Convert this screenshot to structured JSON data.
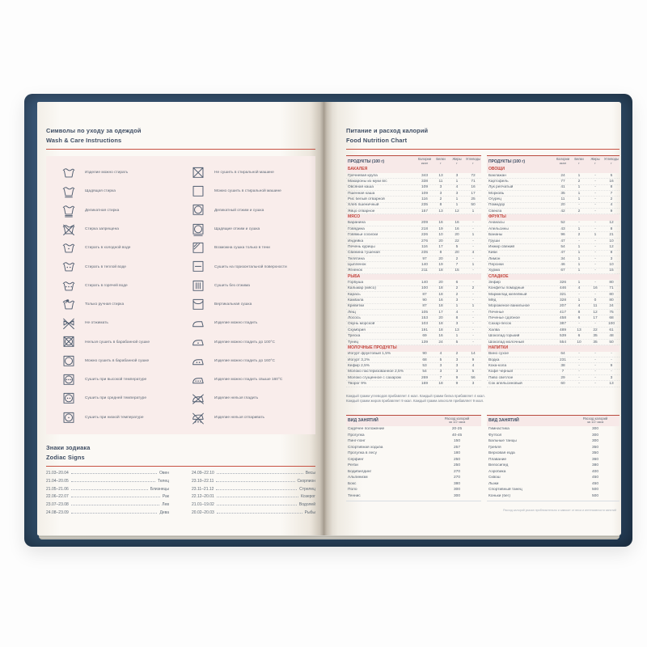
{
  "colors": {
    "cover": "#2d4963",
    "accent_rule": "#c75243",
    "panel_pink": "#f9edeb",
    "section_red": "#c2453c",
    "page": "#fbf9f5",
    "title_navy": "#3e4d63"
  },
  "left_page": {
    "care": {
      "title_ru": "Символы по уходу за одеждой",
      "title_en": "Wash & Care Instructions",
      "items_left": [
        {
          "icon": "washtub",
          "label": "Изделие можно стирать"
        },
        {
          "icon": "washtub-gentle",
          "label": "Щадящая стирка"
        },
        {
          "icon": "washtub-delicate",
          "label": "Деликатная стирка"
        },
        {
          "icon": "washtub-no",
          "label": "Стирка запрещена"
        },
        {
          "icon": "washtub-cold",
          "label": "Стирать в холодной воде"
        },
        {
          "icon": "washtub-warm",
          "label": "Стирать в теплой воде"
        },
        {
          "icon": "washtub-hot",
          "label": "Стирать в горячей воде"
        },
        {
          "icon": "handwash",
          "label": "Только ручная стирка"
        },
        {
          "icon": "no-wring",
          "label": "Не отжимать"
        },
        {
          "icon": "no-tumble-dry",
          "label": "Нельзя сушить в барабанной сушке"
        },
        {
          "icon": "tumble-dry",
          "label": "Можно сушить в барабанной сушке"
        },
        {
          "icon": "tumble-dry-high",
          "label": "Сушить при высокой температуре"
        },
        {
          "icon": "tumble-dry-medium",
          "label": "Сушить при средней температуре"
        },
        {
          "icon": "tumble-dry-low",
          "label": "Сушить при низкой температуре"
        }
      ],
      "items_right": [
        {
          "icon": "no-machine-dry",
          "label": "Не сушить в стиральной машине"
        },
        {
          "icon": "machine-dry",
          "label": "Можно сушить в стиральной машине"
        },
        {
          "icon": "delicate-spin-dry",
          "label": "Деликатный отжим и сушка"
        },
        {
          "icon": "gentle-spin-dry",
          "label": "Щадящие отжим и сушка"
        },
        {
          "icon": "shade-dry",
          "label": "Возможна сушка только в тени"
        },
        {
          "icon": "flat-dry",
          "label": "Сушить на горизонтальной поверхности"
        },
        {
          "icon": "drip-dry",
          "label": "Сушить без отжима"
        },
        {
          "icon": "line-dry",
          "label": "Вертикальная сушка"
        },
        {
          "icon": "iron",
          "label": "Изделие можно гладить"
        },
        {
          "icon": "iron-low",
          "label": "Изделие можно гладить до 100°С"
        },
        {
          "icon": "iron-medium",
          "label": "Изделие можно гладить до 160°С"
        },
        {
          "icon": "iron-high",
          "label": "Изделие можно гладить свыше 160°С"
        },
        {
          "icon": "no-iron",
          "label": "Изделие нельзя гладить"
        },
        {
          "icon": "no-steam",
          "label": "Изделие нельзя отпаривать"
        }
      ]
    },
    "zodiac": {
      "title_ru": "Знаки зодиака",
      "title_en": "Zodiac Signs",
      "col1": [
        {
          "dates": "21.03–20.04",
          "sign": "Овен"
        },
        {
          "dates": "21.04–20.05",
          "sign": "Телец"
        },
        {
          "dates": "21.05–21.06",
          "sign": "Близнецы"
        },
        {
          "dates": "22.06–22.07",
          "sign": "Рак"
        },
        {
          "dates": "23.07–23.08",
          "sign": "Лев"
        },
        {
          "dates": "24.08–23.09",
          "sign": "Дева"
        }
      ],
      "col2": [
        {
          "dates": "24.09–22.10",
          "sign": "Весы"
        },
        {
          "dates": "23.10–22.11",
          "sign": "Скорпион"
        },
        {
          "dates": "23.11–21.12",
          "sign": "Стрелец"
        },
        {
          "dates": "22.12–20.01",
          "sign": "Козерог"
        },
        {
          "dates": "21.01–19.02",
          "sign": "Водолей"
        },
        {
          "dates": "20.02–20.03",
          "sign": "Рыбы"
        }
      ]
    }
  },
  "right_page": {
    "nutrition": {
      "title_ru": "Питание и расход калорий",
      "title_en": "Food Nutrition Chart",
      "products_header": "ПРОДУКТЫ (100 г)",
      "columns": [
        {
          "name": "Калории",
          "unit": "ккал"
        },
        {
          "name": "Белки",
          "unit": "г"
        },
        {
          "name": "Жиры",
          "unit": "г"
        },
        {
          "name": "Углеводы",
          "unit": "г"
        }
      ],
      "left_sections": [
        {
          "name": "БАКАЛЕЯ",
          "rows": [
            [
              "Гречневая крупа",
              "343",
              "13",
              "3",
              "72"
            ],
            [
              "Макароны из муки в/с",
              "338",
              "11",
              "1",
              "71"
            ],
            [
              "Овсяная каша",
              "109",
              "3",
              "4",
              "16"
            ],
            [
              "Пшенная каша",
              "109",
              "3",
              "3",
              "17"
            ],
            [
              "Рис белый отварной",
              "116",
              "2",
              "1",
              "25"
            ],
            [
              "Хлеб пшеничный",
              "235",
              "8",
              "1",
              "50"
            ],
            [
              "Яйцо отварное",
              "157",
              "13",
              "12",
              "1"
            ]
          ]
        },
        {
          "name": "МЯСО",
          "rows": [
            [
              "Баранина",
              "209",
              "16",
              "16",
              "-"
            ],
            [
              "Говядина",
              "218",
              "19",
              "16",
              "-"
            ],
            [
              "Говяжьи сосиски",
              "226",
              "10",
              "20",
              "1"
            ],
            [
              "Индейка",
              "276",
              "20",
              "22",
              "-"
            ],
            [
              "Печень курицы",
              "116",
              "17",
              "5",
              "-"
            ],
            [
              "Свинина тушеная",
              "235",
              "8",
              "20",
              "4"
            ],
            [
              "Телятина",
              "97",
              "20",
              "2",
              "-"
            ],
            [
              "Цыпленок",
              "140",
              "19",
              "7",
              "1"
            ],
            [
              "Ягненок",
              "211",
              "18",
              "15",
              "-"
            ]
          ]
        },
        {
          "name": "РЫБА",
          "rows": [
            [
              "Горбуша",
              "140",
              "20",
              "6",
              "-"
            ],
            [
              "Кальмар (мясо)",
              "100",
              "18",
              "2",
              "2"
            ],
            [
              "Карась",
              "87",
              "18",
              "2",
              "-"
            ],
            [
              "Камбала",
              "90",
              "16",
              "3",
              "-"
            ],
            [
              "Креветки",
              "87",
              "18",
              "1",
              "1"
            ],
            [
              "Лещ",
              "105",
              "17",
              "4",
              "-"
            ],
            [
              "Лосось",
              "153",
              "20",
              "8",
              "-"
            ],
            [
              "Окунь морской",
              "103",
              "18",
              "3",
              "-"
            ],
            [
              "Скумбрия",
              "191",
              "18",
              "13",
              "-"
            ],
            [
              "Треска",
              "69",
              "16",
              "1",
              "-"
            ],
            [
              "Тунец",
              "139",
              "24",
              "5",
              "-"
            ]
          ]
        },
        {
          "name": "МОЛОЧНЫЕ ПРОДУКТЫ",
          "rows": [
            [
              "Йогурт фруктовый 1,5%",
              "90",
              "4",
              "2",
              "14"
            ],
            [
              "Йогурт 3,2%",
              "68",
              "5",
              "3",
              "9"
            ],
            [
              "Кефир 2,5%",
              "53",
              "3",
              "3",
              "4"
            ],
            [
              "Молоко пастеризованное 2,5%",
              "54",
              "3",
              "3",
              "5"
            ],
            [
              "Молоко сгущенное с сахаром",
              "269",
              "7",
              "9",
              "56"
            ],
            [
              "Творог 9%",
              "169",
              "18",
              "9",
              "3"
            ]
          ]
        }
      ],
      "right_sections": [
        {
          "name": "ОВОЩИ",
          "rows": [
            [
              "Баклажан",
              "24",
              "1",
              "-",
              "5"
            ],
            [
              "Картофель",
              "77",
              "2",
              "-",
              "16"
            ],
            [
              "Лук репчатый",
              "41",
              "1",
              "-",
              "8"
            ],
            [
              "Морковь",
              "35",
              "1",
              "-",
              "7"
            ],
            [
              "Огурец",
              "11",
              "1",
              "-",
              "2"
            ],
            [
              "Помидор",
              "20",
              "-",
              "-",
              "4"
            ],
            [
              "Свекла",
              "42",
              "2",
              "-",
              "9"
            ]
          ]
        },
        {
          "name": "ФРУКТЫ",
          "rows": [
            [
              "Ананасы",
              "52",
              "-",
              "-",
              "12"
            ],
            [
              "Апельсины",
              "43",
              "1",
              "-",
              "8"
            ],
            [
              "Бананы",
              "96",
              "2",
              "1",
              "21"
            ],
            [
              "Груши",
              "47",
              "-",
              "-",
              "10"
            ],
            [
              "Инжир свежий",
              "54",
              "1",
              "-",
              "12"
            ],
            [
              "Киви",
              "47",
              "1",
              "-",
              "8"
            ],
            [
              "Лимон",
              "34",
              "1",
              "-",
              "3"
            ],
            [
              "Персики",
              "46",
              "1",
              "-",
              "10"
            ],
            [
              "Хурма",
              "67",
              "1",
              "-",
              "15"
            ]
          ]
        },
        {
          "name": "СЛАДКОЕ",
          "rows": [
            [
              "Зефир",
              "326",
              "1",
              "-",
              "80"
            ],
            [
              "Конфеты помадные",
              "446",
              "4",
              "16",
              "71"
            ],
            [
              "Мармелад желейный",
              "321",
              "-",
              "-",
              "80"
            ],
            [
              "Мёд",
              "328",
              "1",
              "0",
              "80"
            ],
            [
              "Мороженое ванильное",
              "207",
              "4",
              "11",
              "24"
            ],
            [
              "Печенье",
              "417",
              "8",
              "12",
              "75"
            ],
            [
              "Печенье сдобное",
              "458",
              "6",
              "17",
              "68"
            ],
            [
              "Сахар-песок",
              "387",
              "-",
              "-",
              "100"
            ],
            [
              "Халва",
              "489",
              "13",
              "22",
              "61"
            ],
            [
              "Шоколад горький",
              "539",
              "6",
              "35",
              "48"
            ],
            [
              "Шоколад молочный",
              "554",
              "10",
              "35",
              "50"
            ]
          ]
        },
        {
          "name": "НАПИТКИ",
          "rows": [
            [
              "Вино сухое",
              "64",
              "-",
              "-",
              "-"
            ],
            [
              "Водка",
              "231",
              "-",
              "-",
              "-"
            ],
            [
              "Кока-кола",
              "38",
              "-",
              "-",
              "9"
            ],
            [
              "Кофе черный",
              "7",
              "-",
              "-",
              "-"
            ],
            [
              "Пиво светлое",
              "29",
              "-",
              "-",
              "3"
            ],
            [
              "Сок апельсиновый",
              "60",
              "-",
              "-",
              "13"
            ]
          ]
        }
      ],
      "notes": [
        "Каждый грамм углеводов прибавляет 4 ккал. Каждый грамм белка прибавляет 4 ккал.",
        "Каждый грамм жиров прибавляет 9 ккал. Каждый грамм алкоголя прибавляет 9 ккал."
      ]
    },
    "activities": {
      "header": "ВИД ЗАНЯТИЙ",
      "kcal_header_line1": "Расход калорий",
      "kcal_header_line2": "за 1/2 часа",
      "left": [
        {
          "name": "Сидячее положение",
          "kcal": "20-25"
        },
        {
          "name": "Прогулка",
          "kcal": "40-45"
        },
        {
          "name": "Пинг-понг",
          "kcal": "150"
        },
        {
          "name": "Спортивная ходьба",
          "kcal": "257"
        },
        {
          "name": "Прогулка в лесу",
          "kcal": "180"
        },
        {
          "name": "Серфинг",
          "kcal": "250"
        },
        {
          "name": "Регби",
          "kcal": "250"
        },
        {
          "name": "Бодибилдинг",
          "kcal": "270"
        },
        {
          "name": "Альпинизм",
          "kcal": "270"
        },
        {
          "name": "Бокс",
          "kcal": "380"
        },
        {
          "name": "Поло",
          "kcal": "300"
        },
        {
          "name": "Теннис",
          "kcal": "300"
        }
      ],
      "right": [
        {
          "name": "Гимнастика",
          "kcal": "300"
        },
        {
          "name": "Футбол",
          "kcal": "300"
        },
        {
          "name": "Бальные танцы",
          "kcal": "300"
        },
        {
          "name": "Гребля",
          "kcal": "350"
        },
        {
          "name": "Верховая езда",
          "kcal": "350"
        },
        {
          "name": "Плавание",
          "kcal": "360"
        },
        {
          "name": "Велосипед",
          "kcal": "380"
        },
        {
          "name": "Аэробика",
          "kcal": "400"
        },
        {
          "name": "Сквош",
          "kcal": "450"
        },
        {
          "name": "Лыжи",
          "kcal": "450"
        },
        {
          "name": "Спортивный танец",
          "kcal": "500"
        },
        {
          "name": "Коньки (бег)",
          "kcal": "500"
        }
      ]
    },
    "footnote": "Расход калорий указан приблизительно и зависит от веса и интенсивности занятий"
  }
}
